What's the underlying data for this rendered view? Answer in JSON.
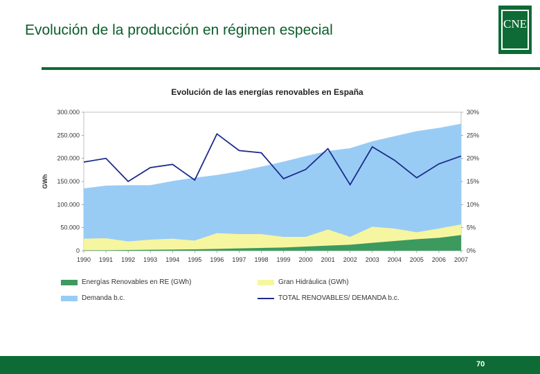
{
  "slide": {
    "title": "Evolución de la producción en régimen especial",
    "logo_text": "CNE",
    "page_number": "70",
    "colors": {
      "brand_green": "#0e6b35"
    }
  },
  "chart_data": {
    "type": "area",
    "title": "Evolución de las energías renovables en España",
    "ylabel": "GWh",
    "ylim": [
      0,
      300000
    ],
    "y2lim": [
      0,
      30
    ],
    "y_ticks": [
      "0",
      "50.000",
      "100.000",
      "150.000",
      "200.000",
      "250.000",
      "300.000"
    ],
    "y2_ticks": [
      "0%",
      "5%",
      "10%",
      "15%",
      "20%",
      "25%",
      "30%"
    ],
    "categories": [
      "1990",
      "1991",
      "1992",
      "1993",
      "1994",
      "1995",
      "1996",
      "1997",
      "1998",
      "1999",
      "2000",
      "2001",
      "2002",
      "2003",
      "2004",
      "2005",
      "2006",
      "2007"
    ],
    "series": [
      {
        "name": "Demanda b.c.",
        "kind": "area",
        "color": "#99ccf5",
        "values": [
          135000,
          141000,
          142000,
          142000,
          151000,
          158000,
          164000,
          172000,
          182000,
          193000,
          205000,
          216000,
          222000,
          237000,
          248000,
          259000,
          266000,
          275000
        ]
      },
      {
        "name": "Gran Hidráulica (GWh)",
        "kind": "area",
        "color": "#f6f6a0",
        "values": [
          26000,
          27000,
          20000,
          24000,
          26000,
          22000,
          38000,
          36000,
          36000,
          30000,
          30000,
          46000,
          30000,
          52000,
          48000,
          40000,
          48000,
          57000
        ]
      },
      {
        "name": "Energías Renovables en RE (GWh)",
        "kind": "area",
        "color": "#3c9a5f",
        "values": [
          1000,
          1000,
          1500,
          2000,
          2500,
          3000,
          4000,
          5000,
          6000,
          7000,
          9000,
          11000,
          13000,
          17000,
          21000,
          25000,
          28000,
          34000
        ]
      },
      {
        "name": "TOTAL RENOVABLES/ DEMANDA b.c.",
        "kind": "line",
        "axis": "right",
        "color": "#1c2a8c",
        "values": [
          19.2,
          20.0,
          15.0,
          18.0,
          18.7,
          15.3,
          25.3,
          21.7,
          21.2,
          15.6,
          17.6,
          22.1,
          14.3,
          22.5,
          19.6,
          15.8,
          18.8,
          20.5
        ]
      }
    ],
    "legend_position": "bottom"
  }
}
